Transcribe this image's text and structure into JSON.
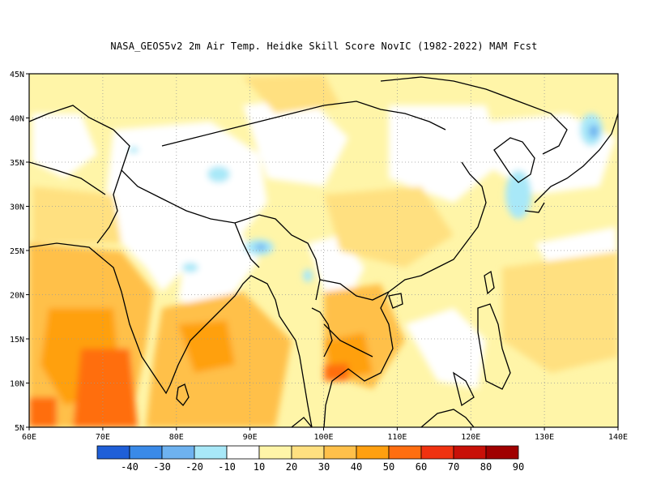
{
  "title": "NASA_GEOS5v2  2m Air Temp. Heidke Skill Score NovIC (1982-2022) MAM Fcst",
  "axes": {
    "lat_ticks": [
      "45N",
      "40N",
      "35N",
      "30N",
      "25N",
      "20N",
      "15N",
      "10N",
      "5N"
    ],
    "lon_ticks": [
      "60E",
      "70E",
      "80E",
      "90E",
      "100E",
      "110E",
      "120E",
      "130E",
      "140E"
    ]
  },
  "colorbar": {
    "colors": [
      "#1f5fd8",
      "#3a8ae8",
      "#6eb2f0",
      "#a8e8f8",
      "#ffffff",
      "#fff5a8",
      "#ffe080",
      "#ffc04a",
      "#ffa010",
      "#ff6e10",
      "#f03210",
      "#c81008",
      "#a00000"
    ],
    "labels": [
      "-40",
      "-30",
      "-20",
      "-10",
      "10",
      "20",
      "30",
      "40",
      "50",
      "60",
      "70",
      "80",
      "90"
    ]
  },
  "map_colors": {
    "land_outline": "#000000",
    "grid": "#999999"
  }
}
